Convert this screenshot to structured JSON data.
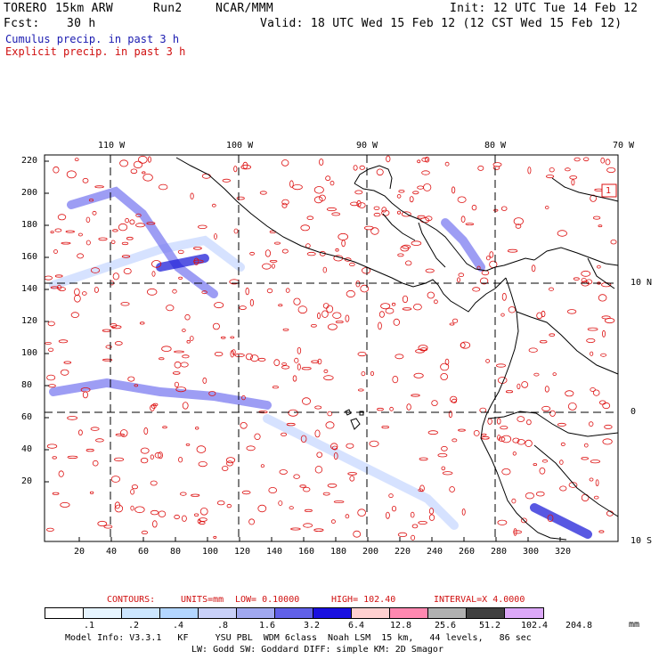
{
  "header": {
    "model": "TORERO",
    "resolution": "15km ARW",
    "run": "Run2",
    "org": "NCAR/MMM",
    "fcst_label": "Fcst:",
    "fcst_value": "30 h",
    "init": "Init: 12 UTC Tue 14 Feb 12",
    "valid": "Valid: 18 UTC Wed 15 Feb 12 (12 CST Wed 15 Feb 12)",
    "line_cumulus": "Cumulus precip. in past 3 h",
    "line_explicit": "Explicit precip. in past 3 h"
  },
  "axes": {
    "lon_labels": [
      "110 W",
      "100 W",
      "90 W",
      "80 W",
      "70 W"
    ],
    "lat_labels": [
      "10 N",
      "0",
      "10 S"
    ],
    "x_ticks": [
      "20",
      "40",
      "60",
      "80",
      "100",
      "120",
      "140",
      "160",
      "180",
      "200",
      "220",
      "240",
      "260",
      "280",
      "300",
      "320"
    ],
    "y_ticks": [
      "220",
      "200",
      "180",
      "160",
      "140",
      "120",
      "100",
      "80",
      "60",
      "40",
      "20"
    ]
  },
  "map": {
    "marker_label": "1",
    "colors": {
      "explicit": "#dd1111",
      "cumulus_light": "#c8d8ff",
      "cumulus_mid": "#7c7cf0",
      "cumulus_dark": "#2020d8",
      "coast": "#000000"
    }
  },
  "contours_line": {
    "label": "CONTOURS:",
    "units": "UNITS=mm",
    "low": "LOW= 0.10000",
    "high": "HIGH= 102.40",
    "interval": "INTERVAL=X 4.0000"
  },
  "legend": {
    "labels": [
      ".1",
      ".2",
      ".4",
      ".8",
      "1.6",
      "3.2",
      "6.4",
      "12.8",
      "25.6",
      "51.2",
      "102.4",
      "204.8"
    ],
    "unit": "mm",
    "colors": [
      "#ffffff",
      "#e6f4ff",
      "#cce6ff",
      "#b3d6ff",
      "#c8d0f8",
      "#a0a8f0",
      "#6060e8",
      "#1a10e0",
      "#ffd0d0",
      "#ff88b0",
      "#b0b0b0",
      "#404040",
      "#dca8f8"
    ]
  },
  "footer": {
    "line1": "Model Info: V3.3.1   KF     YSU PBL  WDM 6class  Noah LSM  15 km,   44 levels,   86 sec",
    "line2": "LW: Godd SW: Goddard DIFF: simple KM: 2D Smagor"
  }
}
